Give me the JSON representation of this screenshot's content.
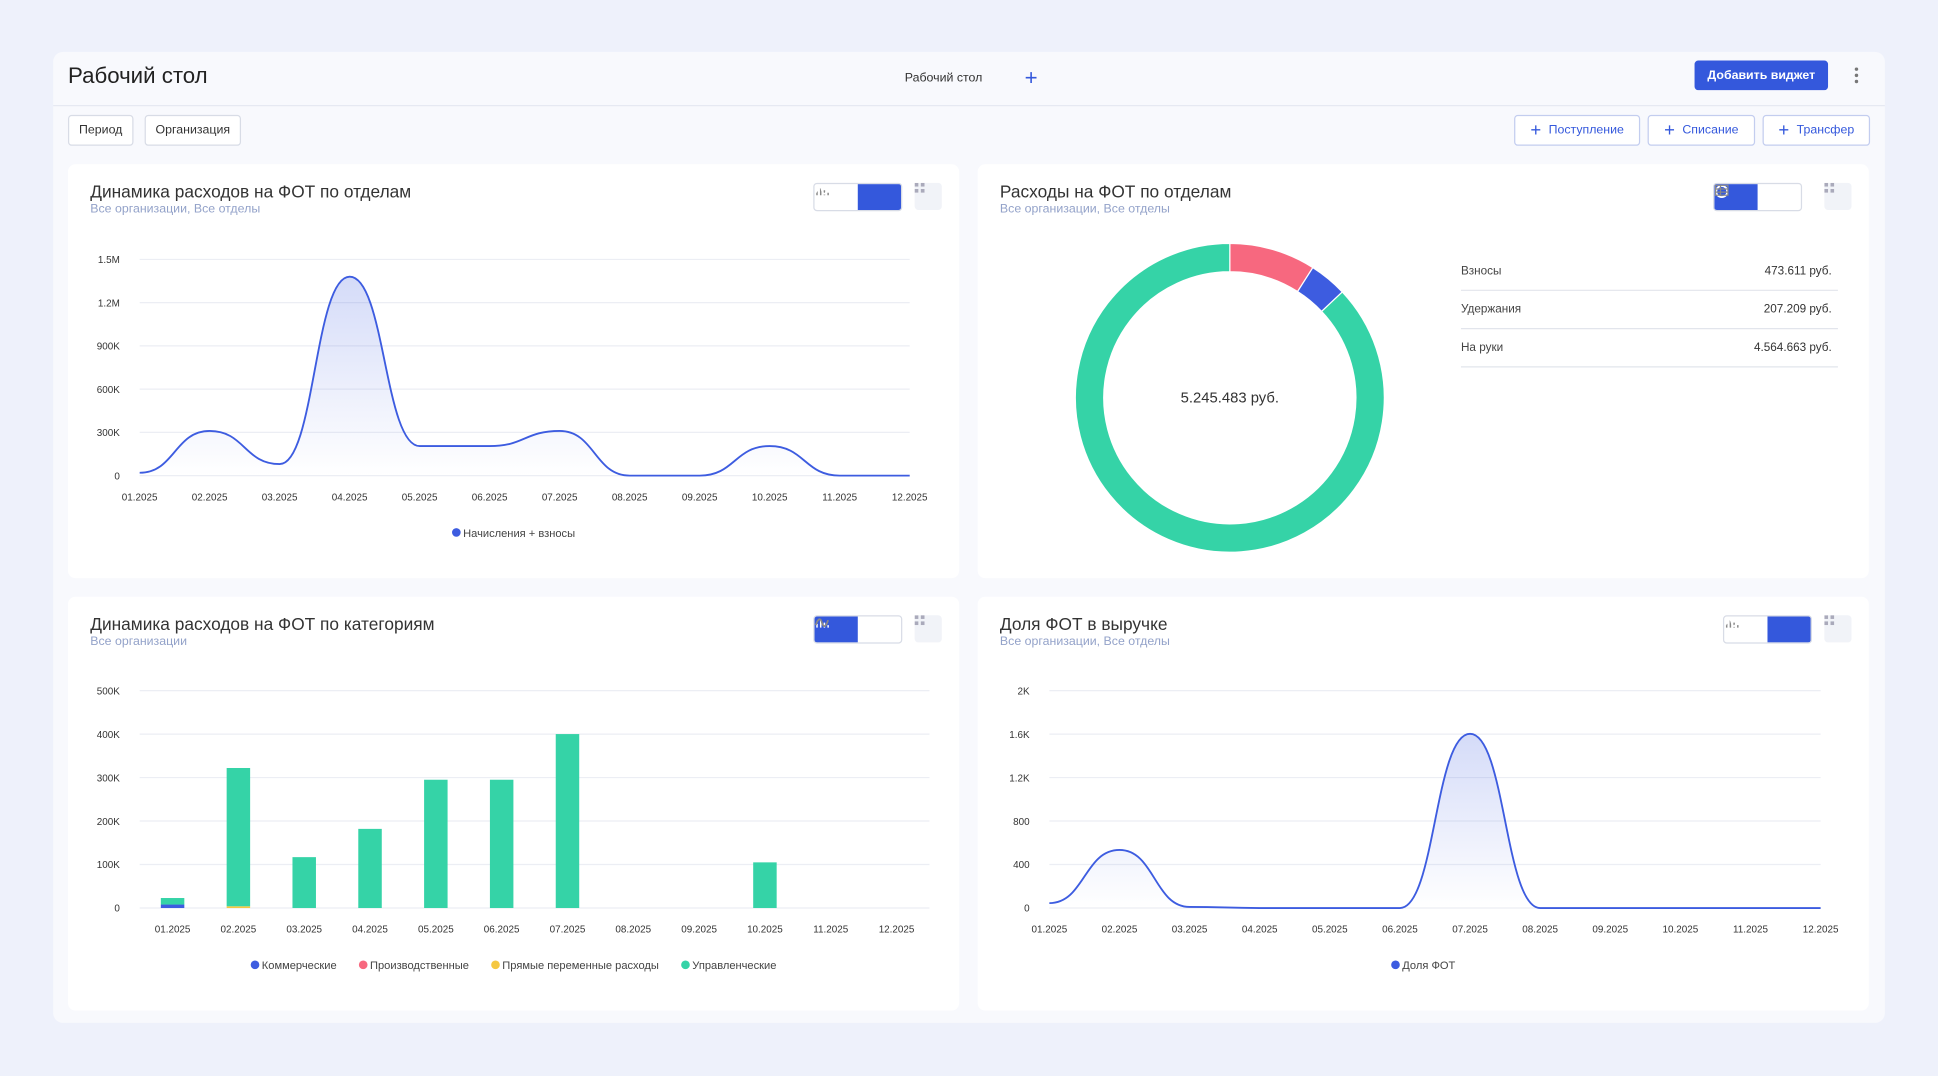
{
  "header": {
    "title": "Рабочий стол",
    "tab": "Рабочий стол",
    "add_widget": "Добавить виджет"
  },
  "filters": [
    "Период",
    "Организация"
  ],
  "actions": [
    "Поступление",
    "Списание",
    "Трансфер"
  ],
  "chart_data": [
    {
      "type": "line",
      "title": "Динамика расходов на ФОТ по отделам",
      "subtitle": "Все организации, Все отделы",
      "categories": [
        "01.2025",
        "02.2025",
        "03.2025",
        "04.2025",
        "05.2025",
        "06.2025",
        "07.2025",
        "08.2025",
        "09.2025",
        "10.2025",
        "11.2025",
        "12.2025"
      ],
      "series": [
        {
          "name": "Начисления + взносы",
          "color": "#3d5ce0",
          "values": [
            20000,
            310000,
            80000,
            1380000,
            205000,
            205000,
            310000,
            0,
            0,
            205000,
            0,
            0
          ]
        }
      ],
      "ylim": [
        0,
        1500000
      ],
      "yticks": [
        0,
        {
          "value": 300000,
          "label": "300K"
        },
        {
          "value": 600000,
          "label": "600K"
        },
        {
          "value": 900000,
          "label": "900K"
        },
        {
          "value": 1200000,
          "label": "1.2M"
        },
        {
          "value": 1500000,
          "label": "1.5M"
        }
      ],
      "grid": true
    },
    {
      "type": "pie",
      "title": "Расходы на ФОТ по отделам",
      "subtitle": "Все организации, Все отделы",
      "categories": [
        "Взносы",
        "Удержания",
        "На руки"
      ],
      "values": [
        473611,
        207209,
        4564663
      ],
      "value_labels": [
        "473.611 руб.",
        "207.209 руб.",
        "4.564.663 руб."
      ],
      "colors": [
        "#f7687f",
        "#3d5ce0",
        "#35d3a7"
      ],
      "center_label": "5.245.483 руб.",
      "donut": true
    },
    {
      "type": "bar",
      "title": "Динамика расходов на ФОТ по категориям",
      "subtitle": "Все организации",
      "categories": [
        "01.2025",
        "02.2025",
        "03.2025",
        "04.2025",
        "05.2025",
        "06.2025",
        "07.2025",
        "08.2025",
        "09.2025",
        "10.2025",
        "11.2025",
        "12.2025"
      ],
      "series": [
        {
          "name": "Коммерческие",
          "color": "#3d5ce0",
          "values": [
            8000,
            0,
            0,
            0,
            0,
            0,
            0,
            0,
            0,
            0,
            0,
            0
          ]
        },
        {
          "name": "Производственные",
          "color": "#f7687f",
          "values": [
            0,
            0,
            0,
            0,
            0,
            0,
            0,
            0,
            0,
            0,
            0,
            0
          ]
        },
        {
          "name": "Прямые переменные расходы",
          "color": "#f5c842",
          "values": [
            0,
            4000,
            0,
            0,
            0,
            0,
            0,
            0,
            0,
            0,
            0,
            0
          ]
        },
        {
          "name": "Управленческие",
          "color": "#35d3a7",
          "values": [
            15000,
            318000,
            117000,
            182000,
            295000,
            295000,
            400000,
            0,
            0,
            105000,
            0,
            0
          ]
        }
      ],
      "stacked": true,
      "ylim": [
        0,
        500000
      ],
      "yticks": [
        0,
        {
          "value": 100000,
          "label": "100K"
        },
        {
          "value": 200000,
          "label": "200K"
        },
        {
          "value": 300000,
          "label": "300K"
        },
        {
          "value": 400000,
          "label": "400K"
        },
        {
          "value": 500000,
          "label": "500K"
        }
      ],
      "grid": true
    },
    {
      "type": "line",
      "title": "Доля ФОТ в выручке",
      "subtitle": "Все организации, Все отделы",
      "categories": [
        "01.2025",
        "02.2025",
        "03.2025",
        "04.2025",
        "05.2025",
        "06.2025",
        "07.2025",
        "08.2025",
        "09.2025",
        "10.2025",
        "11.2025",
        "12.2025"
      ],
      "series": [
        {
          "name": "Доля ФОТ",
          "color": "#3d5ce0",
          "values": [
            45,
            534,
            10,
            0,
            0,
            0,
            1602,
            0,
            0,
            0,
            0,
            0
          ]
        }
      ],
      "ylim": [
        0,
        2000
      ],
      "yticks": [
        0,
        400,
        800,
        {
          "value": 1200,
          "label": "1.2K"
        },
        {
          "value": 1600,
          "label": "1.6K"
        },
        {
          "value": 2000,
          "label": "2K"
        }
      ],
      "grid": true
    }
  ]
}
